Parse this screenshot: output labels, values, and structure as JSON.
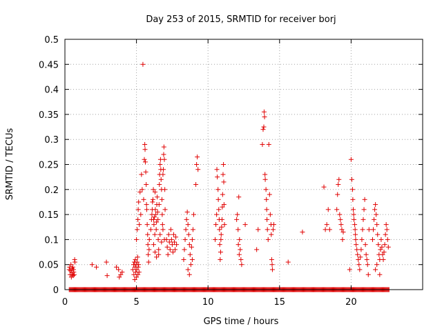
{
  "chart_data": {
    "type": "scatter",
    "title": "Day 253 of 2015, SRMTID for receiver borj",
    "xlabel": "GPS time / hours",
    "ylabel": "SRMTID / TECUs",
    "xlim": [
      0,
      25
    ],
    "ylim": [
      0,
      0.5
    ],
    "xticks": [
      0,
      5,
      10,
      15,
      20
    ],
    "xtick_labels": [
      "0",
      "5",
      "10",
      "15",
      "20"
    ],
    "yticks": [
      0,
      0.05,
      0.1,
      0.15,
      0.2,
      0.25,
      0.3,
      0.35,
      0.4,
      0.45,
      0.5
    ],
    "ytick_labels": [
      "0",
      "0.05",
      "0.1",
      "0.15",
      "0.2",
      "0.25",
      "0.3",
      "0.35",
      "0.4",
      "0.45",
      "0.5"
    ],
    "grid": true,
    "marker": "plus",
    "color": "#e00000",
    "zero_line_x_range": [
      0.3,
      22.7
    ],
    "series": [
      {
        "points": [
          [
            0.3,
            0.04
          ],
          [
            0.33,
            0.045
          ],
          [
            0.36,
            0.03
          ],
          [
            0.4,
            0.038
          ],
          [
            0.42,
            0.05
          ],
          [
            0.45,
            0.025
          ],
          [
            0.48,
            0.035
          ],
          [
            0.5,
            0.042
          ],
          [
            0.52,
            0.03
          ],
          [
            0.55,
            0.045
          ],
          [
            0.58,
            0.028
          ],
          [
            0.6,
            0.04
          ],
          [
            0.62,
            0.035
          ],
          [
            0.65,
            0.03
          ],
          [
            0.68,
            0.06
          ],
          [
            0.7,
            0.055
          ],
          [
            1.9,
            0.05
          ],
          [
            2.2,
            0.045
          ],
          [
            2.9,
            0.055
          ],
          [
            2.95,
            0.028
          ],
          [
            3.6,
            0.045
          ],
          [
            3.75,
            0.04
          ],
          [
            3.8,
            0.025
          ],
          [
            3.9,
            0.03
          ],
          [
            4.0,
            0.035
          ],
          [
            4.75,
            0.04
          ],
          [
            4.8,
            0.05
          ],
          [
            4.82,
            0.03
          ],
          [
            4.85,
            0.055
          ],
          [
            4.88,
            0.02
          ],
          [
            4.9,
            0.045
          ],
          [
            4.92,
            0.06
          ],
          [
            4.95,
            0.035
          ],
          [
            4.97,
            0.05
          ],
          [
            5.0,
            0.025
          ],
          [
            5.02,
            0.04
          ],
          [
            5.05,
            0.055
          ],
          [
            5.08,
            0.065
          ],
          [
            5.1,
            0.03
          ],
          [
            5.12,
            0.045
          ],
          [
            5.15,
            0.05
          ],
          [
            5.18,
            0.035
          ],
          [
            5.0,
            0.1
          ],
          [
            5.05,
            0.12
          ],
          [
            5.1,
            0.14
          ],
          [
            5.12,
            0.16
          ],
          [
            5.15,
            0.175
          ],
          [
            5.2,
            0.13
          ],
          [
            5.25,
            0.195
          ],
          [
            5.3,
            0.15
          ],
          [
            5.35,
            0.23
          ],
          [
            5.4,
            0.2
          ],
          [
            5.45,
            0.45
          ],
          [
            5.5,
            0.18
          ],
          [
            5.55,
            0.26
          ],
          [
            5.58,
            0.29
          ],
          [
            5.6,
            0.28
          ],
          [
            5.62,
            0.255
          ],
          [
            5.65,
            0.235
          ],
          [
            5.68,
            0.21
          ],
          [
            5.7,
            0.17
          ],
          [
            5.72,
            0.16
          ],
          [
            5.75,
            0.13
          ],
          [
            5.78,
            0.11
          ],
          [
            5.8,
            0.09
          ],
          [
            5.82,
            0.07
          ],
          [
            5.85,
            0.055
          ],
          [
            5.88,
            0.08
          ],
          [
            5.9,
            0.1
          ],
          [
            6.0,
            0.12
          ],
          [
            6.05,
            0.14
          ],
          [
            6.08,
            0.15
          ],
          [
            6.1,
            0.16
          ],
          [
            6.12,
            0.175
          ],
          [
            6.15,
            0.18
          ],
          [
            6.18,
            0.2
          ],
          [
            6.2,
            0.14
          ],
          [
            6.22,
            0.13
          ],
          [
            6.25,
            0.145
          ],
          [
            6.28,
            0.11
          ],
          [
            6.3,
            0.195
          ],
          [
            6.32,
            0.16
          ],
          [
            6.35,
            0.15
          ],
          [
            6.38,
            0.12
          ],
          [
            6.4,
            0.135
          ],
          [
            6.42,
            0.17
          ],
          [
            6.45,
            0.185
          ],
          [
            6.48,
            0.155
          ],
          [
            6.5,
            0.14
          ],
          [
            6.52,
            0.1
          ],
          [
            6.55,
            0.08
          ],
          [
            6.58,
            0.17
          ],
          [
            6.6,
            0.21
          ],
          [
            6.62,
            0.23
          ],
          [
            6.65,
            0.25
          ],
          [
            6.68,
            0.26
          ],
          [
            6.7,
            0.24
          ],
          [
            6.72,
            0.22
          ],
          [
            6.75,
            0.2
          ],
          [
            6.78,
            0.18
          ],
          [
            6.8,
            0.15
          ],
          [
            6.82,
            0.13
          ],
          [
            6.85,
            0.23
          ],
          [
            6.88,
            0.24
          ],
          [
            6.9,
            0.27
          ],
          [
            6.92,
            0.285
          ],
          [
            6.95,
            0.26
          ],
          [
            6.98,
            0.2
          ],
          [
            7.0,
            0.16
          ],
          [
            6.2,
            0.09
          ],
          [
            6.3,
            0.075
          ],
          [
            6.4,
            0.065
          ],
          [
            6.55,
            0.07
          ],
          [
            6.65,
            0.11
          ],
          [
            6.75,
            0.095
          ],
          [
            6.85,
            0.12
          ],
          [
            6.95,
            0.1
          ],
          [
            7.1,
            0.1
          ],
          [
            7.15,
            0.085
          ],
          [
            7.2,
            0.07
          ],
          [
            7.25,
            0.11
          ],
          [
            7.3,
            0.095
          ],
          [
            7.35,
            0.08
          ],
          [
            7.4,
            0.12
          ],
          [
            7.45,
            0.1
          ],
          [
            7.5,
            0.09
          ],
          [
            7.55,
            0.075
          ],
          [
            7.6,
            0.11
          ],
          [
            7.65,
            0.095
          ],
          [
            7.7,
            0.08
          ],
          [
            7.75,
            0.105
          ],
          [
            7.8,
            0.09
          ],
          [
            8.3,
            0.06
          ],
          [
            8.35,
            0.08
          ],
          [
            8.4,
            0.1
          ],
          [
            8.45,
            0.12
          ],
          [
            8.5,
            0.14
          ],
          [
            8.55,
            0.155
          ],
          [
            8.6,
            0.13
          ],
          [
            8.65,
            0.11
          ],
          [
            8.7,
            0.09
          ],
          [
            8.75,
            0.07
          ],
          [
            8.8,
            0.05
          ],
          [
            8.85,
            0.085
          ],
          [
            8.9,
            0.1
          ],
          [
            8.95,
            0.12
          ],
          [
            9.0,
            0.15
          ],
          [
            8.6,
            0.04
          ],
          [
            8.7,
            0.03
          ],
          [
            8.9,
            0.06
          ],
          [
            9.15,
            0.21
          ],
          [
            9.2,
            0.25
          ],
          [
            9.25,
            0.265
          ],
          [
            9.3,
            0.24
          ],
          [
            10.5,
            0.1
          ],
          [
            10.55,
            0.13
          ],
          [
            10.6,
            0.15
          ],
          [
            10.62,
            0.24
          ],
          [
            10.65,
            0.225
          ],
          [
            10.7,
            0.2
          ],
          [
            10.72,
            0.18
          ],
          [
            10.75,
            0.16
          ],
          [
            10.78,
            0.14
          ],
          [
            10.8,
            0.12
          ],
          [
            10.82,
            0.09
          ],
          [
            10.85,
            0.06
          ],
          [
            10.88,
            0.075
          ],
          [
            10.9,
            0.1
          ],
          [
            10.92,
            0.11
          ],
          [
            10.95,
            0.125
          ],
          [
            10.98,
            0.14
          ],
          [
            11.0,
            0.165
          ],
          [
            11.02,
            0.19
          ],
          [
            11.05,
            0.23
          ],
          [
            11.08,
            0.25
          ],
          [
            11.1,
            0.215
          ],
          [
            11.12,
            0.17
          ],
          [
            11.15,
            0.13
          ],
          [
            12.0,
            0.14
          ],
          [
            12.1,
            0.12
          ],
          [
            12.15,
            0.185
          ],
          [
            12.2,
            0.1
          ],
          [
            12.25,
            0.08
          ],
          [
            12.3,
            0.06
          ],
          [
            12.35,
            0.05
          ],
          [
            12.05,
            0.15
          ],
          [
            12.12,
            0.09
          ],
          [
            12.18,
            0.07
          ],
          [
            12.6,
            0.13
          ],
          [
            13.4,
            0.08
          ],
          [
            13.5,
            0.12
          ],
          [
            13.8,
            0.29
          ],
          [
            13.85,
            0.32
          ],
          [
            13.9,
            0.325
          ],
          [
            13.92,
            0.355
          ],
          [
            13.95,
            0.345
          ],
          [
            13.98,
            0.23
          ],
          [
            14.0,
            0.22
          ],
          [
            14.05,
            0.2
          ],
          [
            14.08,
            0.18
          ],
          [
            14.1,
            0.16
          ],
          [
            14.12,
            0.14
          ],
          [
            14.15,
            0.12
          ],
          [
            14.2,
            0.1
          ],
          [
            14.25,
            0.29
          ],
          [
            14.3,
            0.19
          ],
          [
            14.35,
            0.15
          ],
          [
            14.4,
            0.13
          ],
          [
            14.42,
            0.11
          ],
          [
            14.45,
            0.06
          ],
          [
            14.48,
            0.05
          ],
          [
            14.5,
            0.04
          ],
          [
            14.55,
            0.12
          ],
          [
            14.6,
            0.13
          ],
          [
            15.6,
            0.055
          ],
          [
            16.6,
            0.115
          ],
          [
            18.1,
            0.205
          ],
          [
            18.2,
            0.12
          ],
          [
            18.3,
            0.13
          ],
          [
            18.4,
            0.16
          ],
          [
            18.5,
            0.12
          ],
          [
            19.0,
            0.16
          ],
          [
            19.05,
            0.19
          ],
          [
            19.1,
            0.21
          ],
          [
            19.15,
            0.22
          ],
          [
            19.2,
            0.15
          ],
          [
            19.25,
            0.14
          ],
          [
            19.3,
            0.13
          ],
          [
            19.35,
            0.12
          ],
          [
            19.4,
            0.1
          ],
          [
            19.45,
            0.115
          ],
          [
            19.9,
            0.04
          ],
          [
            20.0,
            0.26
          ],
          [
            20.05,
            0.22
          ],
          [
            20.1,
            0.2
          ],
          [
            20.12,
            0.18
          ],
          [
            20.15,
            0.16
          ],
          [
            20.18,
            0.15
          ],
          [
            20.2,
            0.14
          ],
          [
            20.25,
            0.13
          ],
          [
            20.28,
            0.12
          ],
          [
            20.3,
            0.11
          ],
          [
            20.32,
            0.1
          ],
          [
            20.35,
            0.09
          ],
          [
            20.4,
            0.08
          ],
          [
            20.45,
            0.07
          ],
          [
            20.5,
            0.06
          ],
          [
            20.55,
            0.05
          ],
          [
            20.6,
            0.04
          ],
          [
            20.65,
            0.065
          ],
          [
            20.7,
            0.08
          ],
          [
            20.75,
            0.1
          ],
          [
            20.8,
            0.12
          ],
          [
            20.85,
            0.14
          ],
          [
            20.9,
            0.16
          ],
          [
            20.95,
            0.18
          ],
          [
            21.0,
            0.09
          ],
          [
            21.05,
            0.07
          ],
          [
            21.1,
            0.06
          ],
          [
            21.15,
            0.05
          ],
          [
            21.2,
            0.03
          ],
          [
            21.25,
            0.12
          ],
          [
            21.5,
            0.1
          ],
          [
            21.55,
            0.12
          ],
          [
            21.6,
            0.14
          ],
          [
            21.65,
            0.16
          ],
          [
            21.7,
            0.17
          ],
          [
            21.75,
            0.15
          ],
          [
            21.8,
            0.13
          ],
          [
            21.85,
            0.11
          ],
          [
            21.9,
            0.09
          ],
          [
            21.95,
            0.07
          ],
          [
            22.0,
            0.06
          ],
          [
            22.05,
            0.08
          ],
          [
            22.1,
            0.1
          ],
          [
            22.15,
            0.085
          ],
          [
            22.2,
            0.07
          ],
          [
            22.25,
            0.06
          ],
          [
            22.3,
            0.075
          ],
          [
            22.35,
            0.09
          ],
          [
            22.4,
            0.11
          ],
          [
            22.45,
            0.13
          ],
          [
            22.5,
            0.12
          ],
          [
            22.55,
            0.1
          ],
          [
            22.6,
            0.085
          ],
          [
            21.7,
            0.04
          ],
          [
            21.8,
            0.05
          ],
          [
            22.0,
            0.03
          ]
        ]
      }
    ]
  }
}
